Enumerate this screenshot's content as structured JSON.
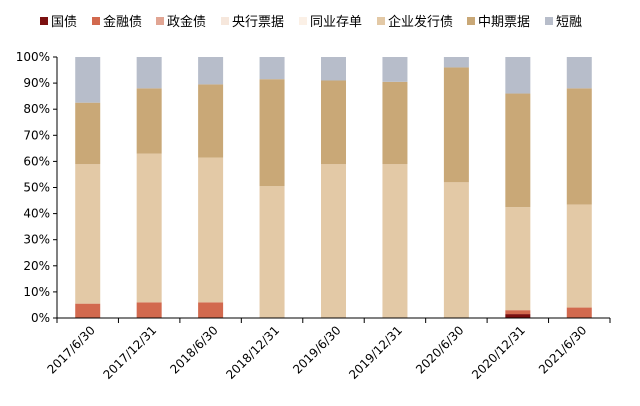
{
  "chart_data": {
    "type": "bar",
    "stacked": true,
    "categories": [
      "2017/6/30",
      "2017/12/31",
      "2018/6/30",
      "2018/12/31",
      "2019/6/30",
      "2019/12/31",
      "2020/6/30",
      "2020/12/31",
      "2021/6/30"
    ],
    "series": [
      {
        "name": "国债",
        "color": "#7b1010",
        "values": [
          0,
          0,
          0,
          0,
          0,
          0,
          0,
          1.5,
          0
        ]
      },
      {
        "name": "金融债",
        "color": "#d2694e",
        "values": [
          5.5,
          6,
          6,
          0,
          0,
          0,
          0,
          1.5,
          4
        ]
      },
      {
        "name": "政金债",
        "color": "#e1a593",
        "values": [
          0,
          0,
          0,
          0,
          0,
          0,
          0,
          0,
          0
        ]
      },
      {
        "name": "央行票据",
        "color": "#f6e7dc",
        "values": [
          0,
          0,
          0,
          0,
          0,
          0,
          0,
          0,
          0
        ]
      },
      {
        "name": "同业存单",
        "color": "#fbf0e6",
        "values": [
          0,
          0,
          0,
          0,
          0,
          0,
          0,
          0,
          0
        ]
      },
      {
        "name": "企业发行债",
        "color": "#e3c9a6",
        "values": [
          53.5,
          57,
          55.5,
          50.5,
          59,
          59,
          52,
          39.5,
          39.5
        ]
      },
      {
        "name": "中期票据",
        "color": "#c9a877",
        "values": [
          23.5,
          25,
          28,
          41,
          32,
          31.5,
          44,
          43.5,
          44.5
        ]
      },
      {
        "name": "短融",
        "color": "#b7bdca",
        "values": [
          17.5,
          12,
          10.5,
          8.5,
          9,
          9.5,
          4,
          14,
          12
        ]
      }
    ],
    "ylim": [
      0,
      100
    ],
    "yticks": [
      "0%",
      "10%",
      "20%",
      "30%",
      "40%",
      "50%",
      "60%",
      "70%",
      "80%",
      "90%",
      "100%"
    ],
    "legend_position": "top",
    "grid": false
  }
}
